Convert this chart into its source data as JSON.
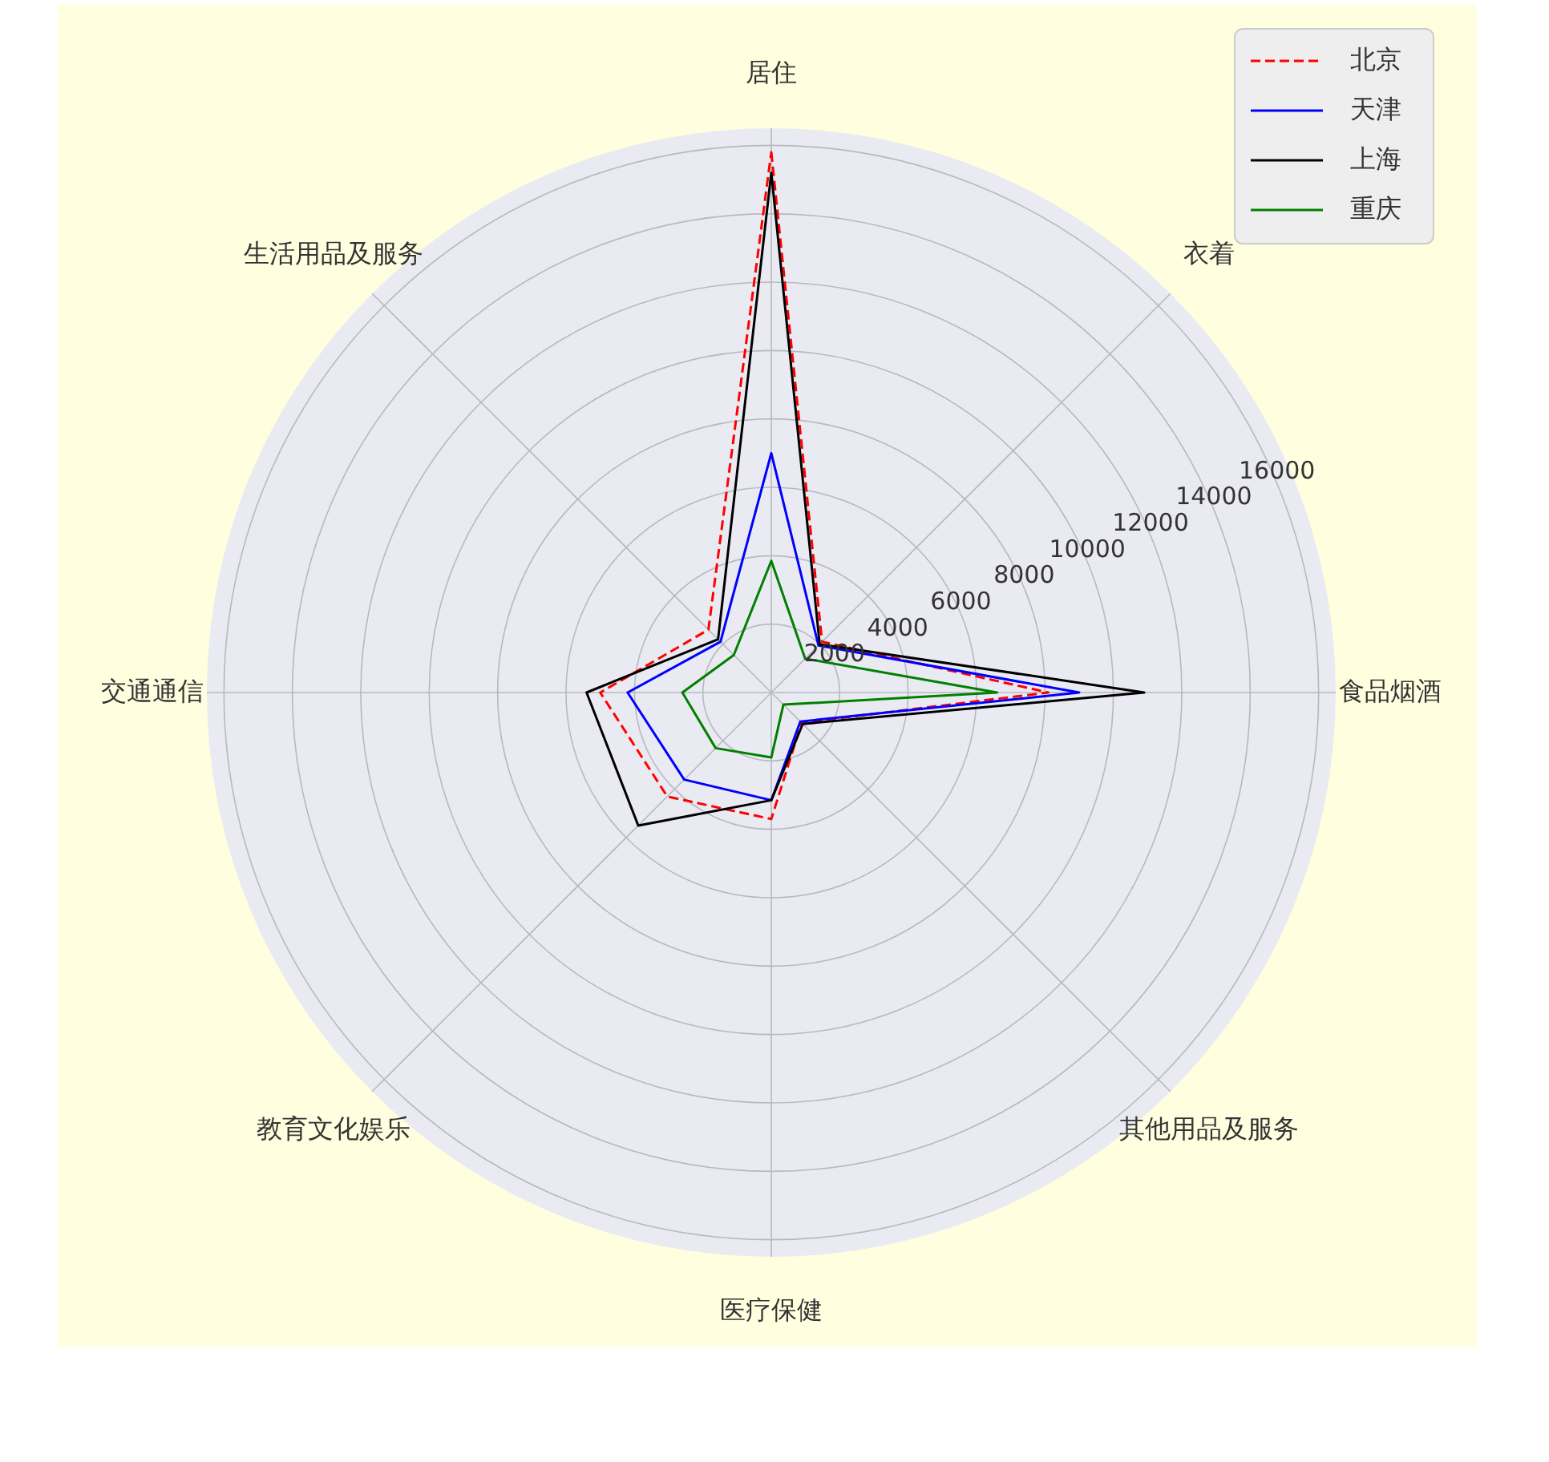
{
  "chart_data": {
    "type": "radar",
    "categories": [
      "居住",
      "衣着",
      "食品烟酒",
      "其他用品及服务",
      "医疗保健",
      "教育文化娱乐",
      "交通通信",
      "生活用品及服务"
    ],
    "series": [
      {
        "name": "北京",
        "color": "#ff0000",
        "line_style": "dashed",
        "values": [
          15800,
          2100,
          8100,
          1250,
          3700,
          4300,
          5000,
          2600
        ]
      },
      {
        "name": "天津",
        "color": "#0000ff",
        "line_style": "solid",
        "values": [
          7000,
          1950,
          9000,
          1200,
          3150,
          3600,
          4200,
          2100
        ]
      },
      {
        "name": "上海",
        "color": "#000000",
        "line_style": "solid",
        "values": [
          15200,
          2000,
          10900,
          1300,
          3150,
          5500,
          5400,
          2200
        ]
      },
      {
        "name": "重庆",
        "color": "#008000",
        "line_style": "solid",
        "values": [
          3850,
          1400,
          6600,
          500,
          1900,
          2300,
          2600,
          1550
        ]
      }
    ],
    "ylim": [
      0,
      16500
    ],
    "yticks": [
      2000,
      4000,
      6000,
      8000,
      10000,
      12000,
      14000,
      16000
    ],
    "grid": true,
    "legend": "top right",
    "marker": "none"
  }
}
